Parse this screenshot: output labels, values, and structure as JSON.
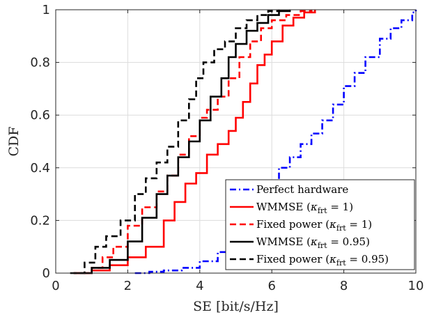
{
  "chart_data": {
    "type": "line",
    "title": "",
    "xlabel": "SE [bit/s/Hz]",
    "ylabel": "CDF",
    "xlim": [
      0,
      10
    ],
    "ylim": [
      0,
      1
    ],
    "xticks": [
      0,
      2,
      4,
      6,
      8,
      10
    ],
    "yticks": [
      0,
      0.2,
      0.4,
      0.6,
      0.8,
      1
    ],
    "xtick_labels": [
      "0",
      "2",
      "4",
      "6",
      "8",
      "10"
    ],
    "ytick_labels": [
      "0",
      "0.2",
      "0.4",
      "0.6",
      "0.8",
      "1"
    ],
    "grid": true,
    "legend_position": "bottom-right",
    "series": [
      {
        "name": "Perfect hardware",
        "color": "#0000ff",
        "dash": "dashdot",
        "x": [
          2.2,
          2.6,
          3.0,
          3.5,
          4.0,
          4.5,
          5.0,
          5.3,
          5.6,
          5.9,
          6.2,
          6.5,
          6.8,
          7.1,
          7.4,
          7.7,
          8.0,
          8.3,
          8.6,
          9.0,
          9.3,
          9.6,
          9.9,
          10.0
        ],
        "y": [
          0.0,
          0.005,
          0.01,
          0.02,
          0.045,
          0.08,
          0.14,
          0.2,
          0.26,
          0.33,
          0.4,
          0.44,
          0.49,
          0.53,
          0.58,
          0.64,
          0.71,
          0.76,
          0.82,
          0.89,
          0.93,
          0.96,
          0.99,
          1.0
        ]
      },
      {
        "name": "WMMSE (κ_frt = 1)",
        "label_main": "WMMSE (",
        "label_sym": "κ",
        "label_sub": "frt",
        "label_tail": " = 1)",
        "color": "#ff0000",
        "dash": "solid",
        "x": [
          0.5,
          1.0,
          1.5,
          2.0,
          2.5,
          3.0,
          3.3,
          3.6,
          3.9,
          4.2,
          4.5,
          4.8,
          5.0,
          5.2,
          5.4,
          5.6,
          5.8,
          6.0,
          6.3,
          6.6,
          6.9,
          7.2
        ],
        "y": [
          0.0,
          0.01,
          0.03,
          0.06,
          0.1,
          0.2,
          0.27,
          0.34,
          0.38,
          0.45,
          0.49,
          0.54,
          0.59,
          0.65,
          0.72,
          0.79,
          0.83,
          0.88,
          0.94,
          0.97,
          0.99,
          1.0
        ]
      },
      {
        "name": "Fixed power (κ_frt = 1)",
        "label_main": "Fixed power (",
        "label_sym": "κ",
        "label_sub": "frt",
        "label_tail": " = 1)",
        "color": "#ff0000",
        "dash": "dashed",
        "x": [
          0.5,
          1.0,
          1.3,
          1.6,
          2.0,
          2.4,
          2.8,
          3.1,
          3.4,
          3.7,
          4.0,
          4.2,
          4.5,
          4.8,
          5.1,
          5.4,
          5.7,
          6.0,
          6.4,
          6.8,
          7.1
        ],
        "y": [
          0.0,
          0.02,
          0.06,
          0.1,
          0.18,
          0.25,
          0.31,
          0.37,
          0.45,
          0.52,
          0.59,
          0.62,
          0.67,
          0.74,
          0.82,
          0.88,
          0.93,
          0.96,
          0.98,
          0.995,
          1.0
        ]
      },
      {
        "name": "WMMSE (κ_frt = 0.95)",
        "label_main": "WMMSE (",
        "label_sym": "κ",
        "label_sub": "frt",
        "label_tail": " = 0.95)",
        "color": "#000000",
        "dash": "solid",
        "x": [
          0.5,
          1.0,
          1.5,
          2.0,
          2.4,
          2.8,
          3.1,
          3.4,
          3.7,
          4.0,
          4.3,
          4.6,
          4.8,
          5.0,
          5.3,
          5.6,
          5.9,
          6.2,
          6.5
        ],
        "y": [
          0.0,
          0.02,
          0.05,
          0.12,
          0.21,
          0.3,
          0.37,
          0.44,
          0.5,
          0.58,
          0.67,
          0.74,
          0.82,
          0.87,
          0.92,
          0.95,
          0.98,
          0.995,
          1.0
        ]
      },
      {
        "name": "Fixed power (κ_frt = 0.95)",
        "label_main": "Fixed power (",
        "label_sym": "κ",
        "label_sub": "frt",
        "label_tail": " = 0.95)",
        "color": "#000000",
        "dash": "dashed",
        "x": [
          0.4,
          0.8,
          1.1,
          1.4,
          1.8,
          2.2,
          2.5,
          2.8,
          3.1,
          3.4,
          3.7,
          3.9,
          4.1,
          4.4,
          4.7,
          5.0,
          5.3,
          5.6,
          5.9,
          6.2
        ],
        "y": [
          0.0,
          0.04,
          0.1,
          0.14,
          0.2,
          0.3,
          0.36,
          0.42,
          0.48,
          0.58,
          0.66,
          0.74,
          0.8,
          0.85,
          0.88,
          0.93,
          0.96,
          0.98,
          0.995,
          1.0
        ]
      }
    ]
  }
}
